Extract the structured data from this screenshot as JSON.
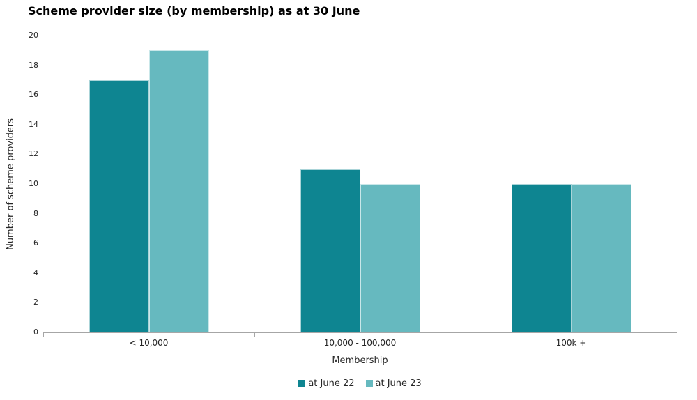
{
  "title": "Scheme provider size (by membership) as at 30 June",
  "chart_data": {
    "type": "bar",
    "title": "Scheme provider size (by membership) as at 30 June",
    "categories": [
      "< 10,000",
      "10,000 - 100,000",
      "100k +"
    ],
    "series": [
      {
        "name": "at June 22",
        "color": "#0E8591",
        "values": [
          17,
          11,
          10
        ]
      },
      {
        "name": "at June 23",
        "color": "#66B9BF",
        "values": [
          19,
          10,
          10
        ]
      }
    ],
    "xlabel": "Membership",
    "ylabel": "Number of scheme providers",
    "ylim": [
      0,
      20
    ],
    "ytick_step": 2,
    "grid": false,
    "legend_position": "bottom-center"
  },
  "colors": {
    "axis_line": "#a6a6a6",
    "tick_text": "#262626",
    "title_text": "#000000",
    "background": "#ffffff"
  }
}
